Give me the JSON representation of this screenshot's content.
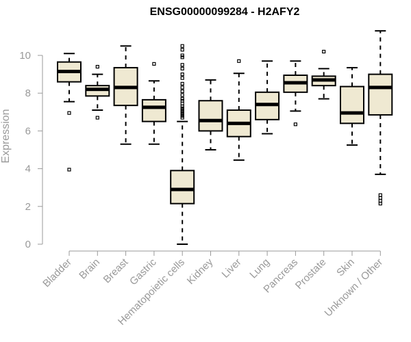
{
  "chart_data": {
    "type": "boxplot",
    "title": "ENSG00000099284 - H2AFY2",
    "xlabel": "",
    "ylabel": "Expression",
    "ylim": [
      0,
      11.5
    ],
    "yticks": [
      0,
      2,
      4,
      6,
      8,
      10
    ],
    "grid": false,
    "colors": {
      "box_fill": "#efe9d2",
      "stroke": "#000000",
      "axis": "#999999"
    },
    "categories": [
      "Bladder",
      "Brain",
      "Breast",
      "Gastric",
      "Hematopoietic cells",
      "Kidney",
      "Liver",
      "Lung",
      "Pancreas",
      "Prostate",
      "Skin",
      "Unknown / Other"
    ],
    "boxes": [
      {
        "name": "Bladder",
        "q1": 8.6,
        "median": 9.15,
        "q3": 9.65,
        "whisker_low": 7.55,
        "whisker_high": 10.1,
        "outliers": [
          6.95,
          3.95
        ]
      },
      {
        "name": "Brain",
        "q1": 7.85,
        "median": 8.2,
        "q3": 8.4,
        "whisker_low": 7.1,
        "whisker_high": 9.0,
        "outliers": [
          9.4,
          6.7
        ]
      },
      {
        "name": "Breast",
        "q1": 7.35,
        "median": 8.3,
        "q3": 9.35,
        "whisker_low": 5.3,
        "whisker_high": 10.5,
        "outliers": []
      },
      {
        "name": "Gastric",
        "q1": 6.5,
        "median": 7.25,
        "q3": 7.65,
        "whisker_low": 5.3,
        "whisker_high": 8.65,
        "outliers": [
          9.55
        ]
      },
      {
        "name": "Hematopoietic cells",
        "q1": 2.15,
        "median": 2.9,
        "q3": 3.9,
        "whisker_low": 0.0,
        "whisker_high": 6.5,
        "outliers": [
          10.5,
          10.3,
          10.0,
          9.9,
          9.5,
          9.3,
          9.0,
          8.8,
          8.5,
          8.3,
          8.1,
          7.9,
          7.7,
          7.6,
          7.45,
          7.3,
          7.2,
          7.1,
          7.0,
          6.9,
          6.8,
          6.7
        ]
      },
      {
        "name": "Kidney",
        "q1": 6.0,
        "median": 6.55,
        "q3": 7.6,
        "whisker_low": 5.0,
        "whisker_high": 8.7,
        "outliers": []
      },
      {
        "name": "Liver",
        "q1": 5.7,
        "median": 6.4,
        "q3": 7.1,
        "whisker_low": 4.45,
        "whisker_high": 9.05,
        "outliers": [
          9.7
        ]
      },
      {
        "name": "Lung",
        "q1": 6.6,
        "median": 7.4,
        "q3": 8.05,
        "whisker_low": 5.85,
        "whisker_high": 9.7,
        "outliers": []
      },
      {
        "name": "Pancreas",
        "q1": 8.05,
        "median": 8.55,
        "q3": 8.95,
        "whisker_low": 7.05,
        "whisker_high": 9.7,
        "outliers": [
          6.35
        ]
      },
      {
        "name": "Prostate",
        "q1": 8.4,
        "median": 8.7,
        "q3": 8.9,
        "whisker_low": 7.7,
        "whisker_high": 9.3,
        "outliers": [
          10.2
        ]
      },
      {
        "name": "Skin",
        "q1": 6.4,
        "median": 6.95,
        "q3": 8.35,
        "whisker_low": 5.25,
        "whisker_high": 9.35,
        "outliers": []
      },
      {
        "name": "Unknown / Other",
        "q1": 6.85,
        "median": 8.3,
        "q3": 9.0,
        "whisker_low": 3.7,
        "whisker_high": 11.3,
        "outliers": [
          2.6,
          2.45,
          2.3,
          2.15
        ]
      }
    ]
  }
}
